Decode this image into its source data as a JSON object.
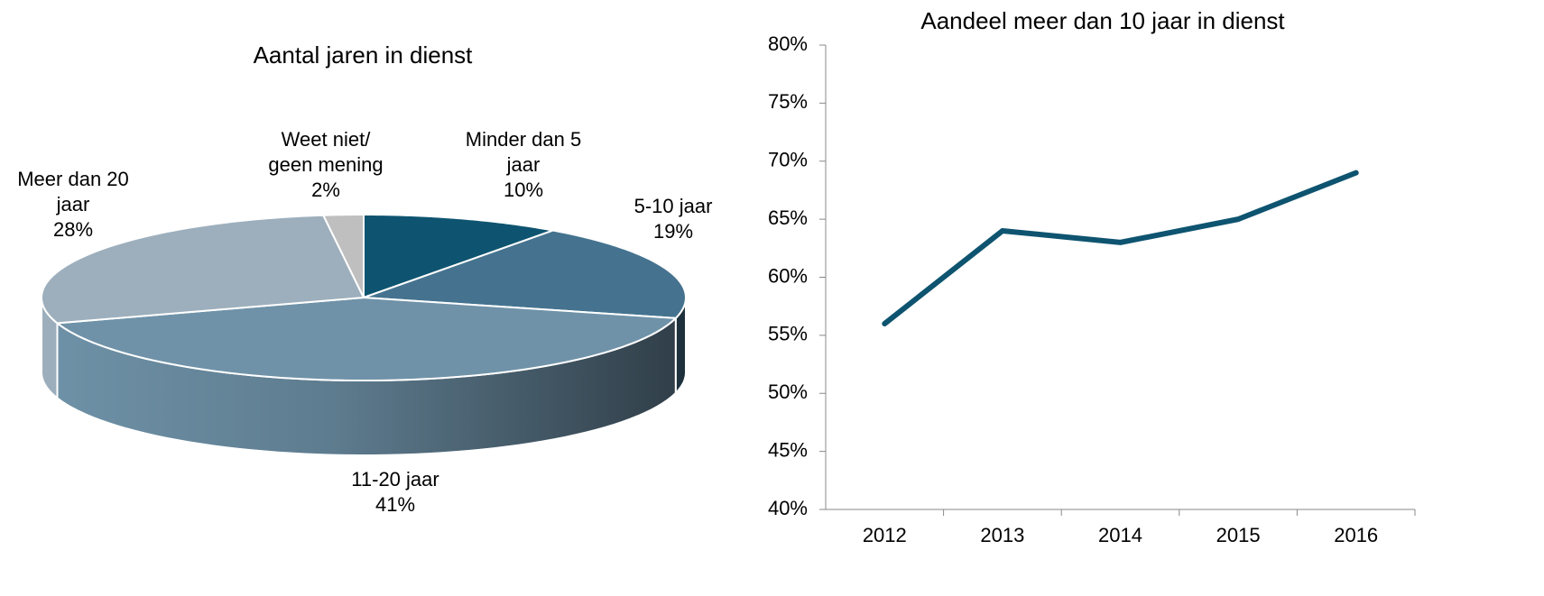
{
  "chart_data": [
    {
      "type": "pie3d",
      "title": "Aantal jaren in dienst",
      "categories": [
        "Minder dan 5 jaar",
        "5-10 jaar",
        "11-20 jaar",
        "Meer dan 20 jaar",
        "Weet niet/ geen mening"
      ],
      "values": [
        10,
        19,
        41,
        28,
        2
      ],
      "value_labels": [
        "10%",
        "19%",
        "41%",
        "28%",
        "2%"
      ],
      "colors": [
        "#0e5470",
        "#45738f",
        "#6f92a8",
        "#9dafbd",
        "#bfbfbf"
      ]
    },
    {
      "type": "line",
      "title": "Aandeel meer dan 10 jaar in dienst",
      "categories": [
        "2012",
        "2013",
        "2014",
        "2015",
        "2016"
      ],
      "values": [
        56,
        64,
        63,
        65,
        69
      ],
      "color": "#0e5470",
      "ylim": [
        40,
        80
      ],
      "yticks": [
        {
          "value": 40,
          "label": "40%"
        },
        {
          "value": 45,
          "label": "45%"
        },
        {
          "value": 50,
          "label": "50%"
        },
        {
          "value": 55,
          "label": "55%"
        },
        {
          "value": 60,
          "label": "60%"
        },
        {
          "value": 65,
          "label": "65%"
        },
        {
          "value": 70,
          "label": "70%"
        },
        {
          "value": 75,
          "label": "75%"
        },
        {
          "value": 80,
          "label": "80%"
        }
      ]
    }
  ]
}
